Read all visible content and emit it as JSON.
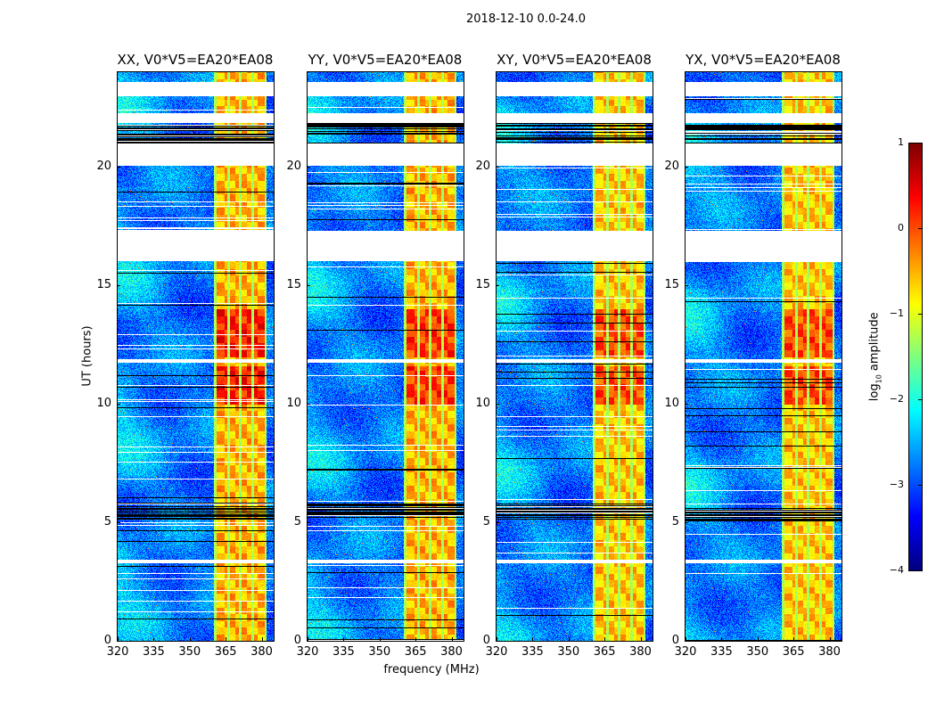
{
  "suptitle": "2018-12-10 0.0-24.0",
  "chart_data": {
    "type": "heatmap",
    "title": "2018-12-10 0.0-24.0",
    "xlabel": "frequency (MHz)",
    "ylabel": "UT (hours)",
    "xlim": [
      320,
      385
    ],
    "ylim": [
      0,
      24
    ],
    "xticks": [
      320,
      335,
      350,
      365,
      380
    ],
    "yticks": [
      0,
      5,
      10,
      15,
      20
    ],
    "panels": [
      {
        "title": "XX, V0*V5=EA20*EA08"
      },
      {
        "title": "YY, V0*V5=EA20*EA08"
      },
      {
        "title": "XY, V0*V5=EA20*EA08"
      },
      {
        "title": "YX, V0*V5=EA20*EA08"
      }
    ],
    "colorbar": {
      "label_prefix": "log",
      "label_sub": "10",
      "label_suffix": " amplitude",
      "range": [
        -4,
        1
      ],
      "ticks": [
        1,
        0,
        -1,
        -2,
        -3,
        -4
      ],
      "colormap": "jet"
    },
    "background_log_amplitude": -2.8,
    "rfi_blocks_mhz": [
      [
        361,
        365.5
      ],
      [
        366.5,
        370.5
      ],
      [
        371.5,
        375.5
      ],
      [
        376.5,
        381
      ]
    ],
    "rfi_log_amplitude": -0.5,
    "rfi_strong_hours": [
      [
        10.0,
        11.6
      ],
      [
        12.0,
        14.0
      ]
    ],
    "flagged_hours_white": [
      [
        22.99,
        23.6
      ],
      [
        21.86,
        22.27
      ],
      [
        20.06,
        21.0
      ],
      [
        16.05,
        17.32
      ],
      [
        11.74,
        11.92
      ],
      [
        3.3,
        3.45
      ]
    ],
    "flagged_hours_black": [
      [
        21.0,
        21.86
      ],
      [
        5.06,
        5.8
      ]
    ],
    "colors": {
      "flag_white": "#ffffff",
      "flag_black": "#000000"
    }
  }
}
